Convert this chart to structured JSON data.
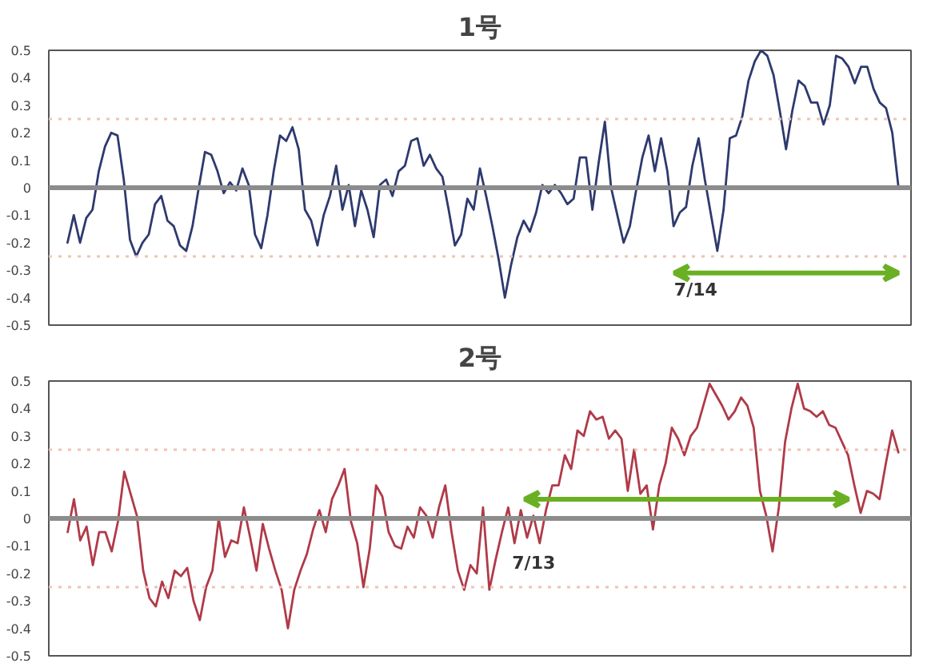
{
  "chart_data": [
    {
      "type": "line",
      "title": "1号",
      "categories": [
        null,
        null,
        null,
        null,
        null,
        null,
        null,
        null,
        null,
        null,
        null,
        null,
        null,
        null,
        null,
        null,
        null,
        null,
        null,
        null,
        null,
        null,
        null,
        null,
        null,
        null,
        null,
        null,
        null,
        null,
        null,
        null,
        null,
        null,
        null,
        null,
        null,
        null,
        null,
        null,
        null,
        null,
        null,
        null,
        null,
        null,
        null,
        null,
        null,
        null,
        null,
        null,
        null,
        null,
        null,
        null,
        null,
        null,
        null,
        null,
        null,
        null,
        null,
        null,
        null,
        null,
        null,
        null,
        null,
        null,
        null,
        null,
        null,
        null,
        null,
        null,
        null,
        null,
        null,
        null,
        null,
        null,
        null,
        null,
        null,
        null,
        null,
        null,
        null,
        null,
        null,
        null,
        null,
        null,
        null,
        null,
        null,
        null,
        null,
        null,
        null,
        null,
        null,
        null,
        null,
        null,
        null,
        null,
        null,
        null,
        null,
        null,
        null,
        null,
        null,
        null,
        null,
        null,
        null,
        null,
        null,
        null,
        null,
        null,
        null,
        null,
        null,
        null,
        null,
        null,
        null,
        null,
        null,
        null
      ],
      "series": [
        {
          "color": "#2e3a6e",
          "values": [
            -0.2,
            -0.1,
            -0.2,
            -0.11,
            -0.08,
            0.06,
            0.15,
            0.2,
            0.19,
            0.03,
            -0.19,
            -0.25,
            -0.2,
            -0.17,
            -0.06,
            -0.03,
            -0.12,
            -0.14,
            -0.21,
            -0.23,
            -0.14,
            0,
            0.13,
            0.12,
            0.06,
            -0.02,
            0.02,
            -0.01,
            0.07,
            0.01,
            -0.17,
            -0.22,
            -0.1,
            0.06,
            0.19,
            0.17,
            0.22,
            0.14,
            -0.08,
            -0.12,
            -0.21,
            -0.1,
            -0.03,
            0.08,
            -0.08,
            0.01,
            -0.14,
            -0.01,
            -0.08,
            -0.18,
            0.01,
            0.03,
            -0.03,
            0.06,
            0.08,
            0.17,
            0.18,
            0.08,
            0.12,
            0.07,
            0.04,
            -0.08,
            -0.21,
            -0.17,
            -0.04,
            -0.08,
            0.07,
            -0.03,
            -0.14,
            -0.26,
            -0.4,
            -0.28,
            -0.18,
            -0.12,
            -0.16,
            -0.09,
            0.01,
            -0.02,
            0.01,
            -0.02,
            -0.06,
            -0.04,
            0.11,
            0.11,
            -0.08,
            0.09,
            0.24,
            0,
            -0.1,
            -0.2,
            -0.14,
            -0.01,
            0.11,
            0.19,
            0.06,
            0.18,
            0.06,
            -0.14,
            -0.09,
            -0.07,
            0.08,
            0.18,
            0.03,
            -0.1,
            -0.23,
            -0.08,
            0.18,
            0.19,
            0.26,
            0.39,
            0.46,
            0.5,
            0.48,
            0.41,
            0.28,
            0.14,
            0.28,
            0.39,
            0.37,
            0.31,
            0.31,
            0.23,
            0.3,
            0.48,
            0.47,
            0.44,
            0.38,
            0.44,
            0.44,
            0.36,
            0.31,
            0.29,
            0.2,
            0
          ]
        }
      ],
      "ylim": [
        -0.5,
        0.5
      ],
      "yticks": [
        -0.5,
        -0.4,
        -0.3,
        -0.2,
        -0.1,
        0,
        0.1,
        0.2,
        0.3,
        0.4,
        0.5
      ],
      "tick_labels": "y",
      "line_style": "solid",
      "marker": "none",
      "ref_lines": [
        {
          "axis": "y",
          "value": 0,
          "color": "#8c8c8c",
          "line_style": "solid"
        },
        {
          "axis": "y",
          "value": 0.25,
          "color": "#eec4b4",
          "line_style": "dotted"
        },
        {
          "axis": "y",
          "value": -0.25,
          "color": "#eec4b4",
          "line_style": "dotted"
        }
      ],
      "annotations": [
        "7/14"
      ]
    },
    {
      "type": "line",
      "title": "2号",
      "categories": [
        null,
        null,
        null,
        null,
        null,
        null,
        null,
        null,
        null,
        null,
        null,
        null,
        null,
        null,
        null,
        null,
        null,
        null,
        null,
        null,
        null,
        null,
        null,
        null,
        null,
        null,
        null,
        null,
        null,
        null,
        null,
        null,
        null,
        null,
        null,
        null,
        null,
        null,
        null,
        null,
        null,
        null,
        null,
        null,
        null,
        null,
        null,
        null,
        null,
        null,
        null,
        null,
        null,
        null,
        null,
        null,
        null,
        null,
        null,
        null,
        null,
        null,
        null,
        null,
        null,
        null,
        null,
        null,
        null,
        null,
        null,
        null,
        null,
        null,
        null,
        null,
        null,
        null,
        null,
        null,
        null,
        null,
        null,
        null,
        null,
        null,
        null,
        null,
        null,
        null,
        null,
        null,
        null,
        null,
        null,
        null,
        null,
        null,
        null,
        null,
        null,
        null,
        null,
        null,
        null,
        null,
        null,
        null,
        null,
        null,
        null,
        null,
        null,
        null,
        null,
        null,
        null,
        null,
        null,
        null,
        null,
        null,
        null,
        null,
        null,
        null,
        null,
        null,
        null,
        null,
        null,
        null,
        null
      ],
      "series": [
        {
          "color": "#b03a48",
          "values": [
            -0.05,
            0.07,
            -0.08,
            -0.03,
            -0.17,
            -0.05,
            -0.05,
            -0.12,
            -0.01,
            0.17,
            0.09,
            0.01,
            -0.19,
            -0.29,
            -0.32,
            -0.23,
            -0.29,
            -0.19,
            -0.21,
            -0.18,
            -0.3,
            -0.37,
            -0.25,
            -0.19,
            0,
            -0.14,
            -0.08,
            -0.09,
            0.04,
            -0.07,
            -0.19,
            -0.02,
            -0.11,
            -0.19,
            -0.26,
            -0.4,
            -0.26,
            -0.19,
            -0.13,
            -0.04,
            0.03,
            -0.05,
            0.07,
            0.12,
            0.18,
            -0.01,
            -0.09,
            -0.25,
            -0.11,
            0.12,
            0.08,
            -0.05,
            -0.1,
            -0.11,
            -0.03,
            -0.07,
            0.04,
            0.01,
            -0.07,
            0.04,
            0.12,
            -0.05,
            -0.19,
            -0.26,
            -0.17,
            -0.2,
            0.04,
            -0.26,
            -0.15,
            -0.05,
            0.04,
            -0.09,
            0.03,
            -0.07,
            0.01,
            -0.09,
            0.03,
            0.12,
            0.12,
            0.23,
            0.18,
            0.32,
            0.3,
            0.39,
            0.36,
            0.37,
            0.29,
            0.32,
            0.29,
            0.1,
            0.25,
            0.09,
            0.12,
            -0.04,
            0.12,
            0.2,
            0.33,
            0.29,
            0.23,
            0.3,
            0.33,
            0.41,
            0.49,
            0.45,
            0.41,
            0.36,
            0.39,
            0.44,
            0.41,
            0.33,
            0.1,
            0.01,
            -0.12,
            0.04,
            0.28,
            0.4,
            0.49,
            0.4,
            0.39,
            0.37,
            0.39,
            0.34,
            0.33,
            0.28,
            0.23,
            0.12,
            0.02,
            0.1,
            0.09,
            0.07,
            0.2,
            0.32,
            0.24
          ]
        }
      ],
      "ylim": [
        -0.5,
        0.5
      ],
      "yticks": [
        -0.5,
        -0.4,
        -0.3,
        -0.2,
        -0.1,
        0,
        0.1,
        0.2,
        0.3,
        0.4,
        0.5
      ],
      "tick_labels": "y",
      "line_style": "solid",
      "marker": "none",
      "ref_lines": [
        {
          "axis": "y",
          "value": 0,
          "color": "#8c8c8c",
          "line_style": "solid"
        },
        {
          "axis": "y",
          "value": 0.25,
          "color": "#eec4b4",
          "line_style": "dotted"
        },
        {
          "axis": "y",
          "value": -0.25,
          "color": "#eec4b4",
          "line_style": "dotted"
        }
      ],
      "annotations": [
        "7/13"
      ]
    }
  ]
}
